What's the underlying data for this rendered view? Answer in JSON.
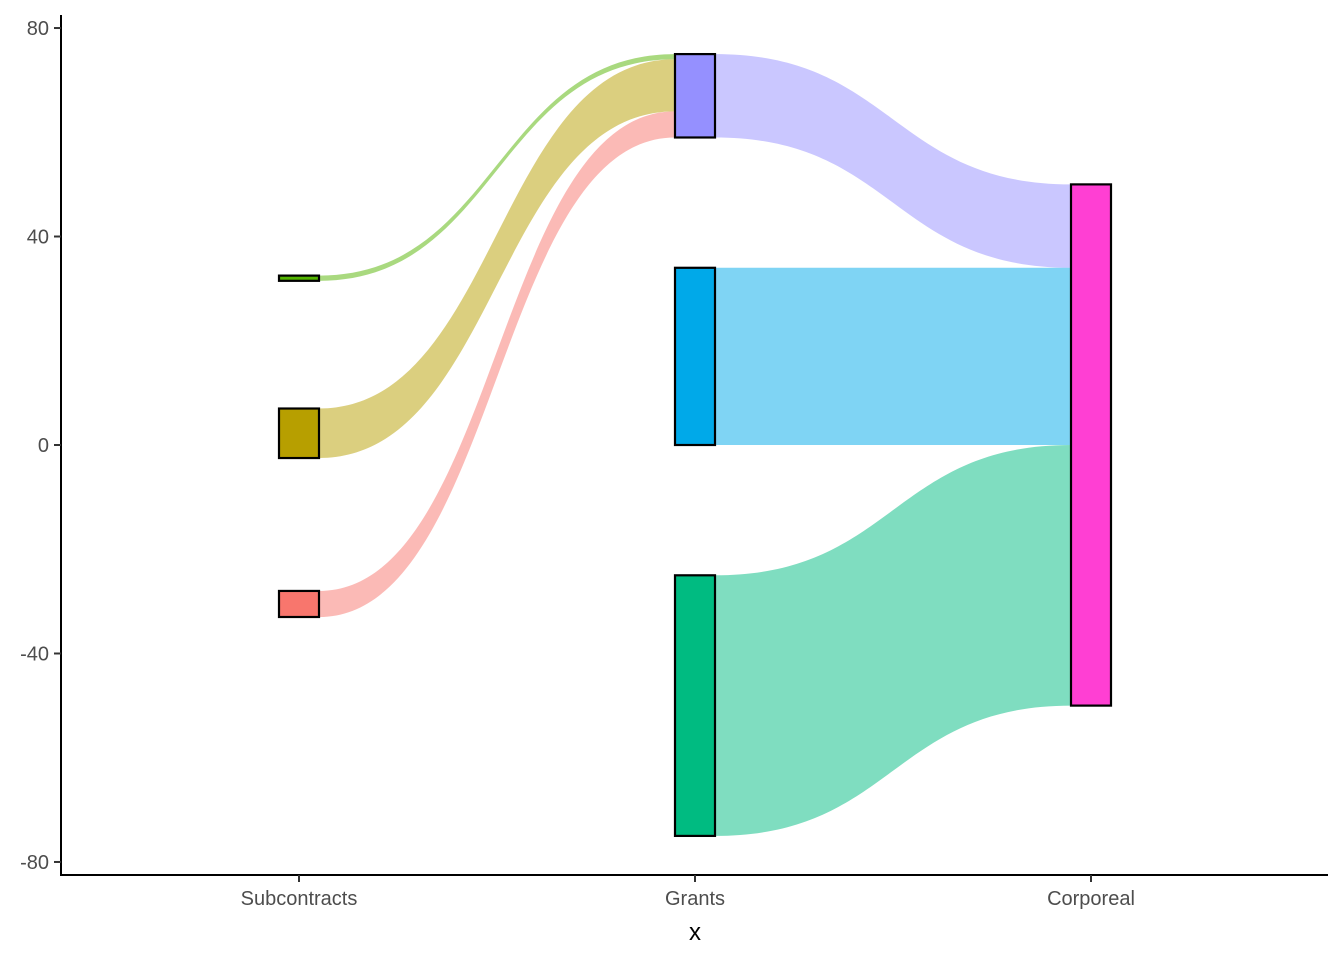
{
  "chart_data": {
    "type": "sankey",
    "title": "",
    "xlabel": "x",
    "ylabel": "",
    "ylim": [
      -82.5,
      82.5
    ],
    "yticks": [
      80,
      40,
      0,
      -40,
      -80
    ],
    "ytick_labels": [
      "80",
      "40",
      "0",
      "-40",
      "-80"
    ],
    "grid": false,
    "legend": "none",
    "stages": [
      "Subcontracts",
      "Grants",
      "Corporeal"
    ],
    "nodes": [
      {
        "id": "sub-green",
        "stage": 0,
        "y0": 31.5,
        "y1": 32.5,
        "color": "#53B400"
      },
      {
        "id": "sub-olive",
        "stage": 0,
        "y0": -2.5,
        "y1": 7.0,
        "color": "#B79F00"
      },
      {
        "id": "sub-red",
        "stage": 0,
        "y0": -33.0,
        "y1": -28.0,
        "color": "#F8766D"
      },
      {
        "id": "grants-purple",
        "stage": 1,
        "y0": 59.0,
        "y1": 75.0,
        "color": "#9590FF"
      },
      {
        "id": "grants-blue",
        "stage": 1,
        "y0": 0.0,
        "y1": 34.0,
        "color": "#00A9E9"
      },
      {
        "id": "grants-green",
        "stage": 1,
        "y0": -75.0,
        "y1": -25.0,
        "color": "#00BB81"
      },
      {
        "id": "corporeal-pink",
        "stage": 2,
        "y0": -50.0,
        "y1": 50.0,
        "color": "#FF3FD3"
      }
    ],
    "flows": [
      {
        "from_stage": 0,
        "to_stage": 1,
        "y0_from": 31.5,
        "y1_from": 32.5,
        "y0_to": 74.0,
        "y1_to": 75.0,
        "color": "#53B400"
      },
      {
        "from_stage": 0,
        "to_stage": 1,
        "y0_from": -2.5,
        "y1_from": 7.0,
        "y0_to": 64.0,
        "y1_to": 74.0,
        "color": "#B79F00"
      },
      {
        "from_stage": 0,
        "to_stage": 1,
        "y0_from": -33.0,
        "y1_from": -28.0,
        "y0_to": 59.0,
        "y1_to": 64.0,
        "color": "#F8766D"
      },
      {
        "from_stage": 1,
        "to_stage": 2,
        "y0_from": 59.0,
        "y1_from": 75.0,
        "y0_to": 34.0,
        "y1_to": 50.0,
        "color": "#9590FF"
      },
      {
        "from_stage": 1,
        "to_stage": 2,
        "y0_from": 0.0,
        "y1_from": 34.0,
        "y0_to": 0.0,
        "y1_to": 34.0,
        "color": "#00A9E9"
      },
      {
        "from_stage": 1,
        "to_stage": 2,
        "y0_from": -75.0,
        "y1_from": -25.0,
        "y0_to": -50.0,
        "y1_to": 0.0,
        "color": "#00BB81"
      }
    ]
  }
}
